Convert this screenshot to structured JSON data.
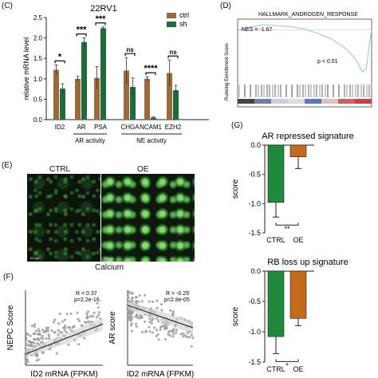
{
  "panels": {
    "c": "(C)",
    "d": "(D)",
    "e": "(E)",
    "f": "(F)",
    "g": "(G)"
  },
  "micrograph": {
    "ctrl_label": "CTRL",
    "oe_label": "OE",
    "caption": "Calcium",
    "scale_ctrl": "50 µm",
    "scale_oe": "50 µm"
  },
  "chart_data": [
    {
      "id": "C",
      "type": "bar",
      "title": "22RV1",
      "ylabel": "relative mRNA level",
      "ylim": [
        0,
        2.5
      ],
      "yticks": [
        "0.0",
        "0.5",
        "1.0",
        "1.5",
        "2.0",
        "2.5"
      ],
      "categories": [
        "ID2",
        "AR",
        "PSA",
        "CHGA",
        "NCAM1",
        "EZH2"
      ],
      "series": [
        {
          "name": "ctrl",
          "color": "#9b6a3c",
          "values": [
            1.22,
            1.0,
            1.02,
            1.2,
            1.0,
            1.14
          ],
          "errors": [
            0.12,
            0.06,
            0.28,
            0.32,
            0.05,
            0.32
          ]
        },
        {
          "name": "sh",
          "color": "#1f6b3a",
          "values": [
            0.76,
            1.9,
            2.24,
            0.8,
            0.05,
            0.72
          ],
          "errors": [
            0.12,
            0.1,
            0.03,
            0.22,
            0.02,
            0.12
          ]
        }
      ],
      "significance": [
        "*",
        "***",
        "***",
        "ns",
        "****",
        "ns"
      ],
      "groups": [
        "AR activity",
        "NE activity"
      ]
    },
    {
      "id": "D",
      "type": "line",
      "title": "HALLMARK_ANDROGEN_RESPONSE",
      "ylabel": "Running Enrichment Score",
      "nes_label": "NES = -1.67",
      "p_label": "p < 0.01",
      "x": [
        0,
        10,
        20,
        30,
        40,
        50,
        60,
        70,
        80,
        85,
        90,
        93,
        96,
        98,
        100
      ],
      "y": [
        0,
        0.03,
        0.05,
        0.04,
        0.03,
        0.01,
        -0.03,
        -0.08,
        -0.16,
        -0.22,
        -0.3,
        -0.38,
        -0.35,
        -0.15,
        0
      ]
    },
    {
      "id": "F1",
      "type": "scatter",
      "xlabel": "ID2 mRNA (FPKM)",
      "ylabel": "NEPC Score",
      "r_label": "R = 0.37",
      "p_label": "p=2.2e-16",
      "fit": [
        [
          0,
          0.15
        ],
        [
          1,
          0.55
        ]
      ]
    },
    {
      "id": "F2",
      "type": "scatter",
      "xlabel": "ID2 mRNA (FPKM)",
      "ylabel": "AR score",
      "r_label": "R = -0.29",
      "p_label": "p=2.8e-05",
      "fit": [
        [
          0,
          0.8
        ],
        [
          1,
          0.5
        ]
      ]
    },
    {
      "id": "G1",
      "type": "bar",
      "title": "AR repressed signature",
      "ylabel": "score",
      "ylim": [
        -1.5,
        0
      ],
      "yticks": [
        "0.0",
        "-0.5",
        "-1.0",
        "-1.5"
      ],
      "categories": [
        "CTRL",
        "OE"
      ],
      "values": [
        -0.98,
        -0.2
      ],
      "errors": [
        0.25,
        0.2
      ],
      "colors": [
        "#1f8a3a",
        "#c46a1a"
      ],
      "significance": "**"
    },
    {
      "id": "G2",
      "type": "bar",
      "title": "RB loss up signature",
      "ylabel": "score",
      "ylim": [
        -1.5,
        0
      ],
      "yticks": [
        "0.0",
        "-0.5",
        "-1.0",
        "-1.5"
      ],
      "categories": [
        "CTRL",
        "OE"
      ],
      "values": [
        -1.08,
        -0.78
      ],
      "errors": [
        0.28,
        0.12
      ],
      "colors": [
        "#1f8a3a",
        "#c46a1a"
      ],
      "significance": "*"
    }
  ]
}
